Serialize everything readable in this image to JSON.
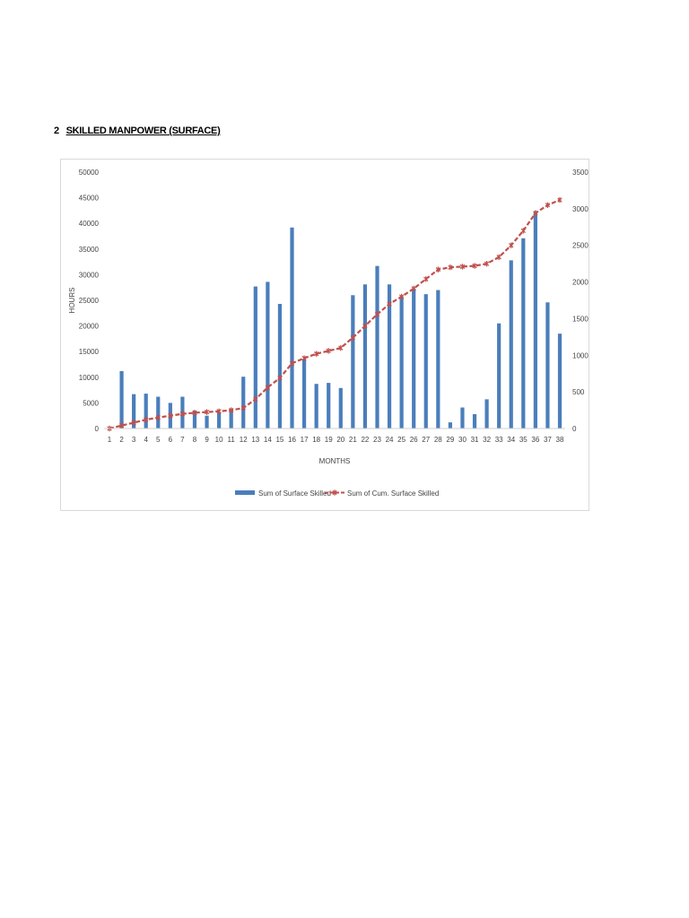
{
  "heading": {
    "number": "2",
    "title": "SKILLED MANPOWER (SURFACE)"
  },
  "chart_data": {
    "type": "bar",
    "categories": [
      "1",
      "2",
      "3",
      "4",
      "5",
      "6",
      "7",
      "8",
      "9",
      "10",
      "11",
      "12",
      "13",
      "14",
      "15",
      "16",
      "17",
      "18",
      "19",
      "20",
      "21",
      "22",
      "23",
      "24",
      "25",
      "26",
      "27",
      "28",
      "29",
      "30",
      "31",
      "32",
      "33",
      "34",
      "35",
      "36",
      "37",
      "38"
    ],
    "xlabel": "MONTHS",
    "ylabel": "HOURS",
    "ylim": [
      0,
      50000
    ],
    "y_ticks": [
      0,
      5000,
      10000,
      15000,
      20000,
      25000,
      30000,
      35000,
      40000,
      45000,
      50000
    ],
    "y2lim": [
      0,
      3500
    ],
    "y2_ticks": [
      0,
      500,
      1000,
      1500,
      2000,
      2500,
      3000,
      3500
    ],
    "grid": false,
    "legend_position": "bottom",
    "series": [
      {
        "name": "Sum of Surface Skilled",
        "type": "bar",
        "axis": "left",
        "color": "#4a7ebb",
        "values": [
          0,
          11200,
          6700,
          6800,
          6200,
          5000,
          6200,
          3500,
          2500,
          3200,
          3800,
          10100,
          27700,
          28600,
          24300,
          39200,
          13500,
          8700,
          8900,
          7900,
          26000,
          28100,
          31700,
          28100,
          25800,
          27300,
          26200,
          27000,
          1200,
          4100,
          2800,
          5700,
          20500,
          32800,
          37100,
          42400,
          24600,
          18500
        ]
      },
      {
        "name": "Sum of Cum. Surface Skilled",
        "type": "line",
        "axis": "right",
        "color": "#c0504d",
        "marker": "star",
        "values": [
          0,
          40,
          80,
          120,
          150,
          175,
          200,
          215,
          225,
          235,
          250,
          280,
          400,
          560,
          690,
          890,
          960,
          1020,
          1060,
          1100,
          1240,
          1400,
          1560,
          1700,
          1800,
          1910,
          2040,
          2170,
          2200,
          2210,
          2220,
          2250,
          2340,
          2500,
          2700,
          2940,
          3050,
          3120
        ]
      }
    ]
  }
}
